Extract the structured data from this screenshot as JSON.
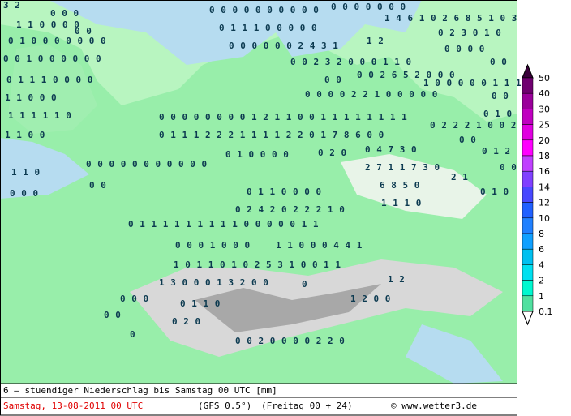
{
  "map": {
    "labels": [
      "3 2",
      "0 0 0",
      "0 0 0 0 0 0 0 0 0 0",
      "0 0 0 0 0 0 0",
      "1 4 6 1 0 2 6 8 5 1 0 3",
      "1 1 0 0 0 0",
      "0 0",
      "0 1 1 1 0 0 0 0 0",
      "1 2",
      "0 2 3 0 1 0",
      "0 1 0 0 0 0 0 0 0",
      "0 0 0 0 0 0 2 4 3 1",
      "0 0 0 0",
      "0 0 1 0 0 0 0 0 0",
      "0 0 2 3 2 0 0 0 1 1 0",
      "0 0",
      "0 1 1 1 0 0 0 0",
      "0 0",
      "0 0 2 6 5 2 0 0 0",
      "1 0 0 0 0 0 1 1 1 0",
      "1 1 0 0 0",
      "0 0",
      "0 0 0 0 2 2 1 0 0 0 0 0",
      "0 1 0",
      "0 0 0 0 0 0 0 0 1 2 1 1 0 0 1 1 1 1 1 1 1 1",
      "1 1 1 1 1 0",
      "0 2 2 2 1 0 0 2 0",
      "0 1 1 1 2 2 2 1 1 1 1 2 2 0 1 7 8 6 0 0",
      "1 1 0 0",
      "0 0",
      "0 1 0 0 0 0",
      "0 2 0",
      "0 4 7 3 0",
      "0 1 2",
      "1 1 0",
      "0 0 0 0 0 0 0 0 0 0 0",
      "0 0 0",
      "0 0",
      "2 7 1 1 7 3 0",
      "2 1",
      "0 0 0",
      "0 1 1 0 0 0 0",
      "6 8 5 0",
      "0 1 0",
      "0 2 4 2 0 2 2 2 1 0",
      "1 1 1 0",
      "0 1 1 1 1 1 1 1 1 1 0 0 0 0 0 1 1",
      "0 0 0 1 0 0 0",
      "1 1 0 0 0 4 4 1",
      "1 0 1 1 0 1 0 2 5 3 1 0 0 1 1",
      "1 3 0 0 0 1 3 2 0 0",
      "0",
      "1 2",
      "0 0 0",
      "0 1 1 0",
      "1 2 0 0",
      "0 2 0",
      "0 0 2 0 0 0 0 2 2 0",
      "0 0",
      "0"
    ]
  },
  "legend": {
    "levels": [
      50,
      40,
      30,
      25,
      20,
      18,
      16,
      14,
      12,
      10,
      8,
      6,
      4,
      2,
      1,
      0.1
    ],
    "colors": [
      "#3a003a",
      "#700070",
      "#9a009a",
      "#c000c0",
      "#e000e0",
      "#ff00ff",
      "#c040ff",
      "#8040ff",
      "#4848ff",
      "#2060ff",
      "#2080ff",
      "#10a0ff",
      "#00c0f0",
      "#00e0f0",
      "#00f8d0",
      "#50e0a0"
    ]
  },
  "footer": {
    "title": "6 – stuendiger Niederschlag bis Samstag 00 UTC [mm]",
    "date": "Samstag, 13-08-2011  00 UTC",
    "model": "(GFS 0.5°)",
    "run": "(Freitag 00 + 24)",
    "credit": "© www.wetter3.de"
  }
}
